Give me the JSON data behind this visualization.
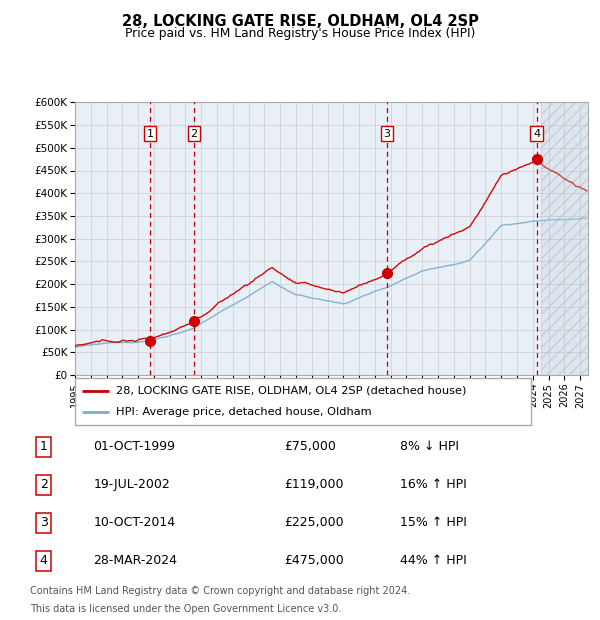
{
  "title": "28, LOCKING GATE RISE, OLDHAM, OL4 2SP",
  "subtitle": "Price paid vs. HM Land Registry's House Price Index (HPI)",
  "legend_line1": "28, LOCKING GATE RISE, OLDHAM, OL4 2SP (detached house)",
  "legend_line2": "HPI: Average price, detached house, Oldham",
  "footer1": "Contains HM Land Registry data © Crown copyright and database right 2024.",
  "footer2": "This data is licensed under the Open Government Licence v3.0.",
  "transactions": [
    {
      "num": 1,
      "date": "01-OCT-1999",
      "price": 75000,
      "pct": "8%",
      "dir": "↓"
    },
    {
      "num": 2,
      "date": "19-JUL-2002",
      "price": 119000,
      "pct": "16%",
      "dir": "↑"
    },
    {
      "num": 3,
      "date": "10-OCT-2014",
      "price": 225000,
      "pct": "15%",
      "dir": "↑"
    },
    {
      "num": 4,
      "date": "28-MAR-2024",
      "price": 475000,
      "pct": "44%",
      "dir": "↑"
    }
  ],
  "transaction_dates_decimal": [
    1999.75,
    2002.54,
    2014.77,
    2024.24
  ],
  "transaction_prices": [
    75000,
    119000,
    225000,
    475000
  ],
  "ylim": [
    0,
    600000
  ],
  "yticks": [
    0,
    50000,
    100000,
    150000,
    200000,
    250000,
    300000,
    350000,
    400000,
    450000,
    500000,
    550000,
    600000
  ],
  "xlim_start": 1995.0,
  "xlim_end": 2027.5,
  "xticks": [
    1995,
    1996,
    1997,
    1998,
    1999,
    2000,
    2001,
    2002,
    2003,
    2004,
    2005,
    2006,
    2007,
    2008,
    2009,
    2010,
    2011,
    2012,
    2013,
    2014,
    2015,
    2016,
    2017,
    2018,
    2019,
    2020,
    2021,
    2022,
    2023,
    2024,
    2025,
    2026,
    2027
  ],
  "red_line_color": "#cc0000",
  "blue_line_color": "#7aadcc",
  "grid_color": "#cccccc",
  "bg_color": "#eef2f8",
  "hatch_start": 2024.5,
  "hatch_color": "#b8c8d8",
  "shade_color": "#d8e8f4",
  "transaction_box_color": "#ffffff",
  "transaction_box_border": "#cc0000",
  "dashed_line_color": "#cc0000"
}
